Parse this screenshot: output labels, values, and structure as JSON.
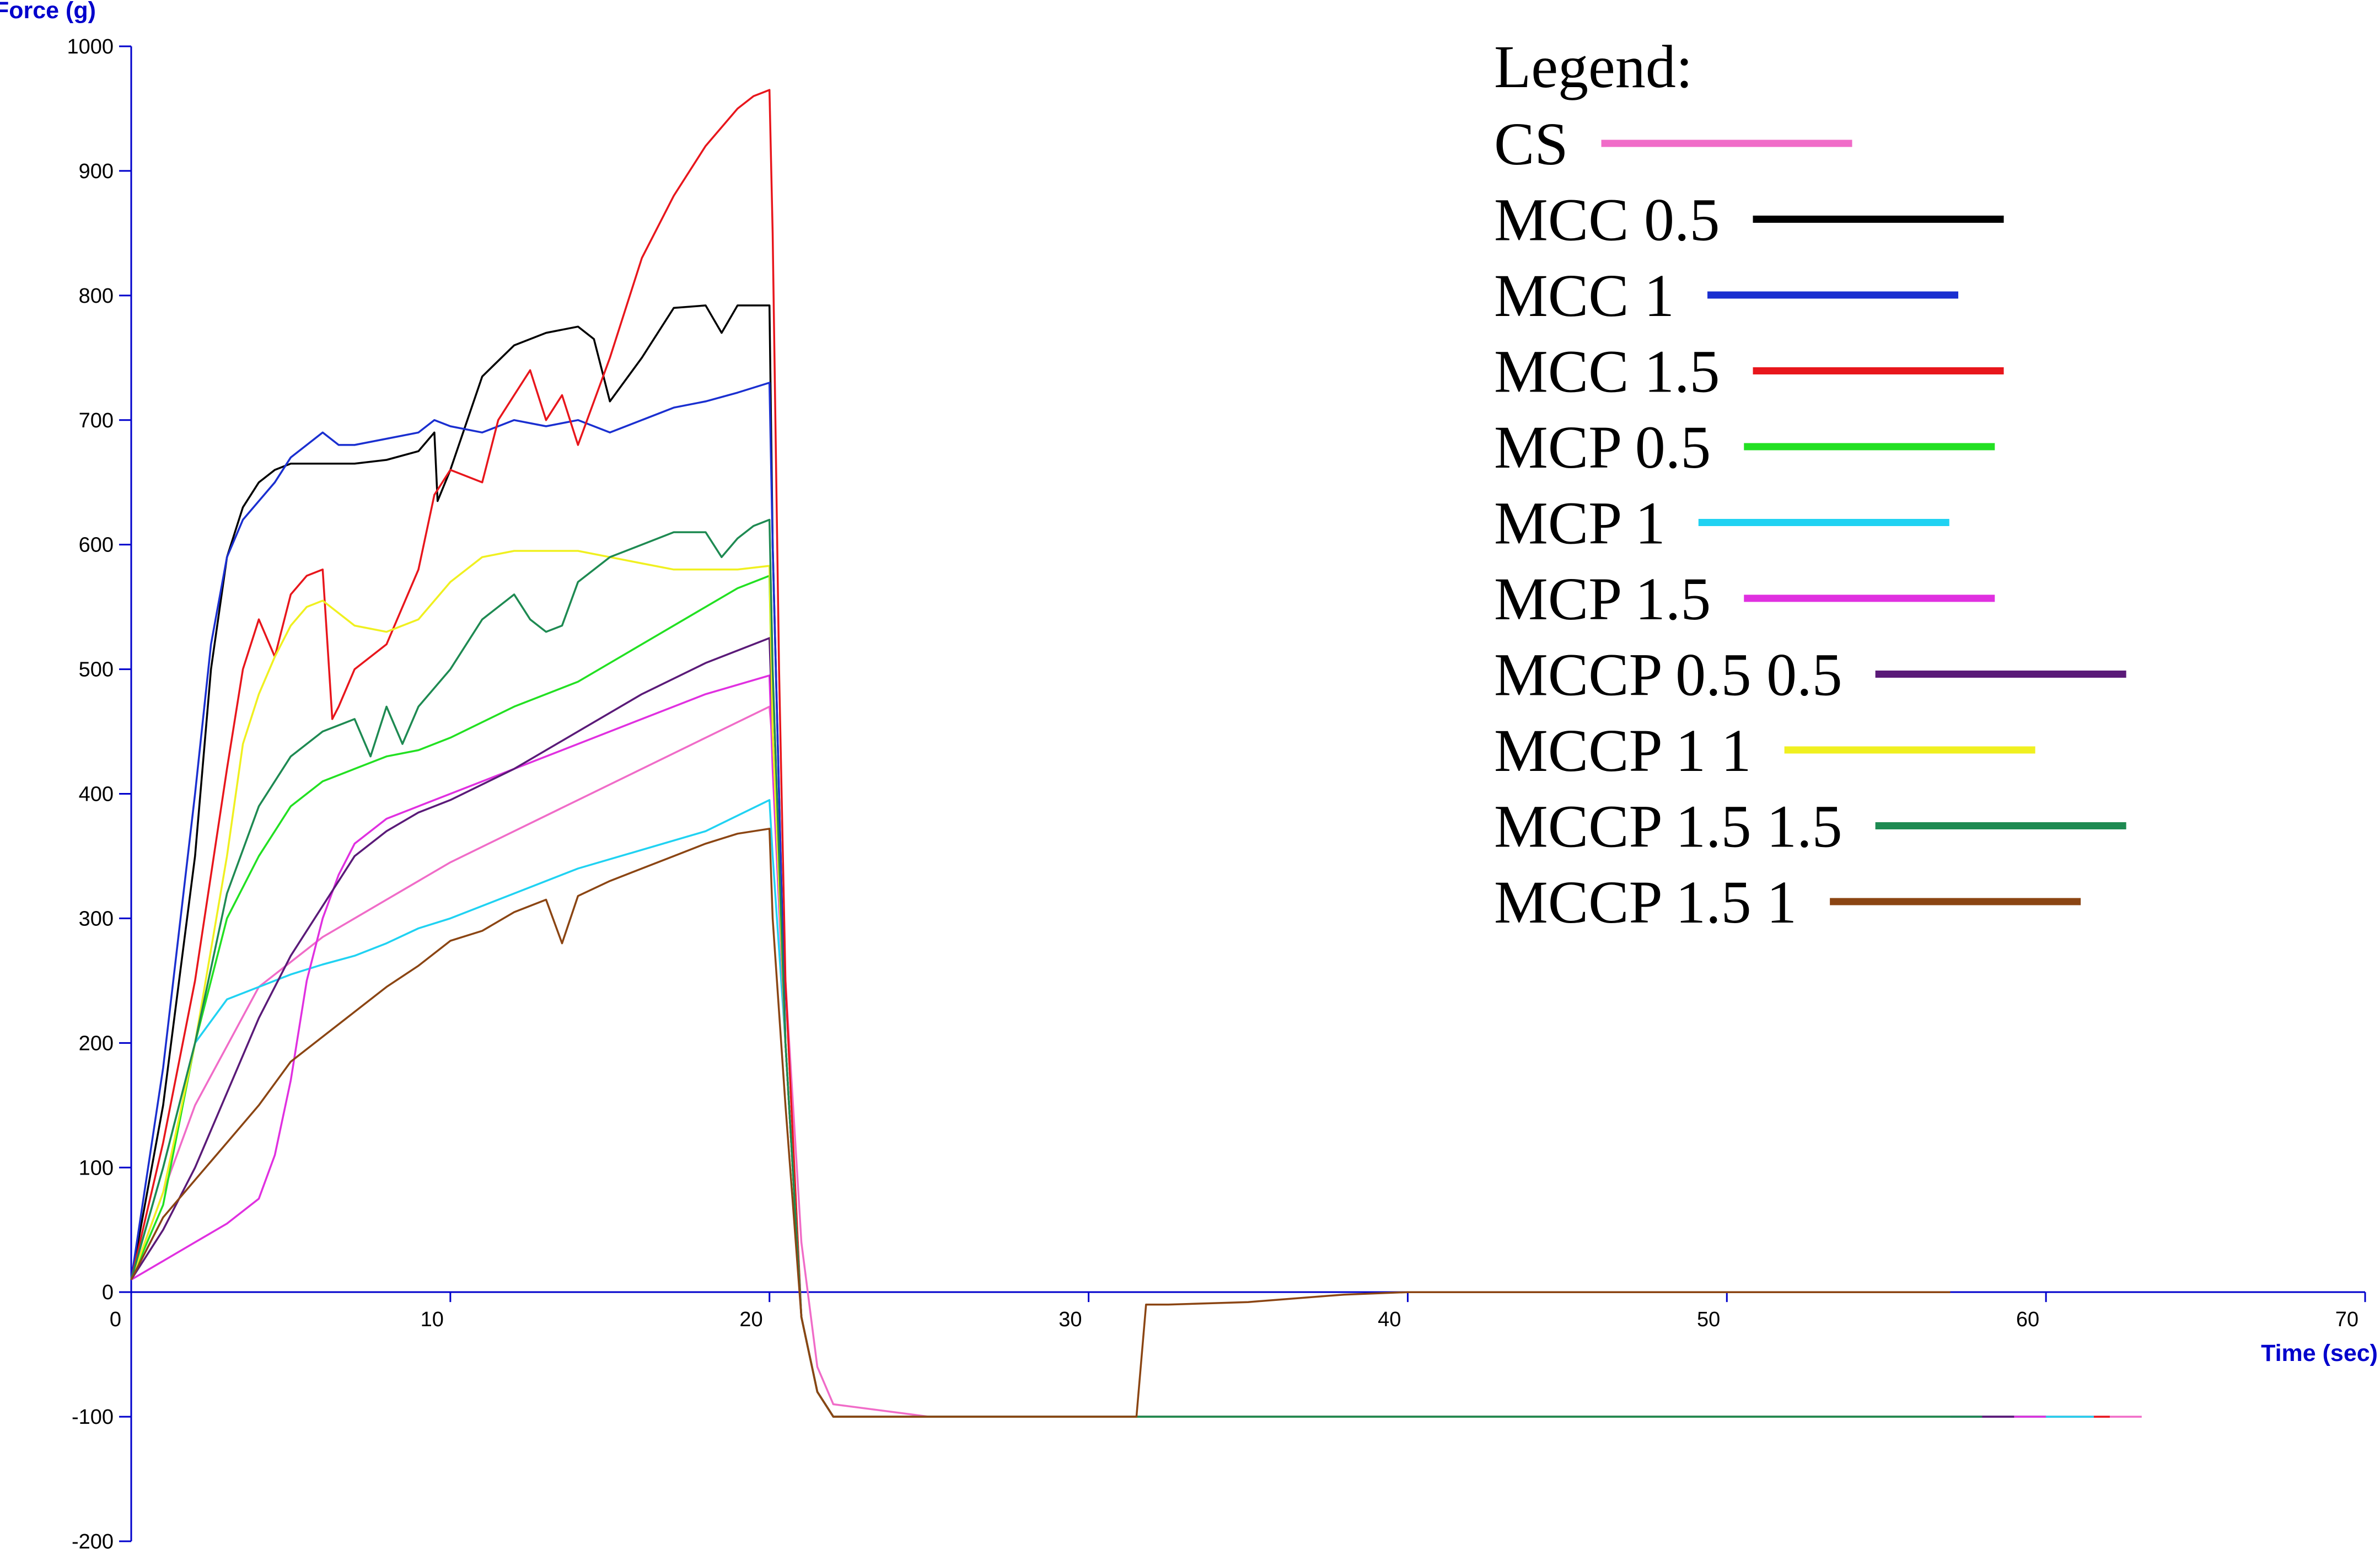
{
  "chart_data": {
    "type": "line",
    "ylabel": "Force (g)",
    "xlabel": "Time (sec)",
    "xlim": [
      0,
      70
    ],
    "ylim": [
      -200,
      1000
    ],
    "x_ticks": [
      0,
      10,
      20,
      30,
      40,
      50,
      60,
      70
    ],
    "y_ticks": [
      1000,
      900,
      800,
      700,
      600,
      500,
      400,
      300,
      200,
      100,
      0,
      -100,
      -200
    ],
    "grid": false,
    "legend_title": "Legend:",
    "legend_position": "top-right",
    "axis_color": "#0000cc",
    "series": [
      {
        "name": "CS",
        "color": "#f06cc8",
        "x": [
          0,
          2,
          4,
          6,
          8,
          10,
          12,
          14,
          16,
          18,
          20,
          20.1,
          20.5,
          21,
          21.5,
          22,
          25,
          40,
          60,
          63
        ],
        "y": [
          10,
          150,
          245,
          285,
          315,
          345,
          370,
          395,
          420,
          445,
          470,
          440,
          250,
          40,
          -60,
          -90,
          -100,
          -100,
          -100,
          -100
        ]
      },
      {
        "name": "MCC 0.5",
        "color": "#000000",
        "x": [
          0,
          1,
          2,
          2.5,
          3,
          3.5,
          4,
          4.5,
          5,
          5.5,
          6,
          7,
          8,
          9,
          9.5,
          9.6,
          10,
          11,
          12,
          13,
          14,
          14.5,
          15,
          16,
          17,
          18,
          18.5,
          19,
          20,
          20.1,
          20.5,
          21,
          21.5,
          22,
          30,
          50,
          59
        ],
        "y": [
          10,
          150,
          350,
          500,
          590,
          630,
          650,
          660,
          665,
          665,
          665,
          665,
          668,
          675,
          690,
          635,
          660,
          735,
          760,
          770,
          775,
          765,
          715,
          750,
          790,
          792,
          770,
          792,
          792,
          600,
          200,
          -20,
          -80,
          -100,
          -100,
          -100,
          -100
        ]
      },
      {
        "name": "MCC 1",
        "color": "#1a2fd0",
        "x": [
          0,
          1,
          2,
          2.5,
          3,
          3.5,
          4,
          4.5,
          5,
          5.5,
          6,
          6.5,
          7,
          8,
          9,
          9.5,
          10,
          11,
          12,
          13,
          14,
          15,
          16,
          17,
          18,
          19,
          20,
          20.1,
          20.5,
          21,
          21.5,
          22,
          30,
          50,
          60
        ],
        "y": [
          10,
          180,
          400,
          520,
          590,
          620,
          635,
          650,
          670,
          680,
          690,
          680,
          680,
          685,
          690,
          700,
          695,
          690,
          700,
          695,
          700,
          690,
          700,
          710,
          715,
          722,
          730,
          600,
          200,
          -20,
          -80,
          -100,
          -100,
          -100,
          -100
        ]
      },
      {
        "name": "MCC 1.5",
        "color": "#e8161c",
        "x": [
          0,
          1,
          2,
          3,
          3.5,
          4,
          4.5,
          5,
          5.5,
          6,
          6.3,
          6.5,
          7,
          8,
          9,
          9.5,
          10,
          11,
          11.5,
          12,
          12.5,
          13,
          13.5,
          14,
          15,
          16,
          17,
          18,
          19,
          19.5,
          20,
          20.1,
          20.3,
          20.5,
          21,
          21.5,
          22,
          30,
          50,
          62
        ],
        "y": [
          10,
          120,
          250,
          420,
          500,
          540,
          510,
          560,
          575,
          580,
          460,
          470,
          500,
          520,
          580,
          640,
          660,
          650,
          700,
          720,
          740,
          700,
          720,
          680,
          750,
          830,
          880,
          920,
          950,
          960,
          965,
          850,
          500,
          250,
          -20,
          -80,
          -100,
          -100,
          -100,
          -100
        ]
      },
      {
        "name": "MCP 0.5",
        "color": "#22e022",
        "x": [
          0,
          1,
          2,
          3,
          4,
          5,
          6,
          7,
          8,
          9,
          10,
          12,
          14,
          16,
          18,
          19,
          20,
          20.1,
          20.5,
          21,
          21.5,
          22,
          30,
          50,
          60
        ],
        "y": [
          10,
          70,
          200,
          300,
          350,
          390,
          410,
          420,
          430,
          435,
          445,
          470,
          490,
          520,
          550,
          565,
          575,
          450,
          200,
          -20,
          -80,
          -100,
          -100,
          -100,
          -100
        ]
      },
      {
        "name": "MCP 1",
        "color": "#20d2f2",
        "x": [
          0,
          1,
          2,
          3,
          4,
          5,
          6,
          7,
          8,
          9,
          10,
          12,
          14,
          16,
          18,
          20,
          20.1,
          20.5,
          21,
          21.5,
          22,
          30,
          50,
          61.5
        ],
        "y": [
          10,
          100,
          200,
          235,
          245,
          255,
          263,
          270,
          280,
          292,
          300,
          320,
          340,
          355,
          370,
          395,
          350,
          200,
          -20,
          -80,
          -100,
          -100,
          -100,
          -100
        ]
      },
      {
        "name": "MCP 1.5",
        "color": "#e030e0",
        "x": [
          0,
          1,
          2,
          3,
          4,
          4.5,
          5,
          5.5,
          6,
          6.5,
          7,
          8,
          9,
          10,
          12,
          14,
          16,
          18,
          20,
          20.1,
          20.5,
          21,
          21.5,
          22,
          30,
          50,
          60
        ],
        "y": [
          10,
          25,
          40,
          55,
          75,
          110,
          170,
          250,
          300,
          335,
          360,
          380,
          390,
          400,
          420,
          440,
          460,
          480,
          495,
          420,
          200,
          -20,
          -80,
          -100,
          -100,
          -100,
          -100
        ]
      },
      {
        "name": "MCCP 0.5 0.5",
        "color": "#5a1a78",
        "x": [
          0,
          1,
          2,
          3,
          4,
          5,
          6,
          7,
          8,
          9,
          10,
          12,
          14,
          16,
          18,
          20,
          20.1,
          20.5,
          21,
          21.5,
          22,
          30,
          50,
          59
        ],
        "y": [
          10,
          50,
          100,
          160,
          220,
          270,
          310,
          350,
          370,
          385,
          395,
          420,
          450,
          480,
          505,
          525,
          450,
          200,
          -20,
          -80,
          -100,
          -100,
          -100,
          -100
        ]
      },
      {
        "name": "MCCP 1 1",
        "color": "#f0f020",
        "x": [
          0,
          1,
          2,
          3,
          3.5,
          4,
          4.5,
          5,
          5.5,
          6,
          7,
          8,
          9,
          10,
          11,
          12,
          13,
          14,
          15,
          16,
          17,
          18,
          19,
          20,
          20.1,
          20.5,
          21,
          21.5,
          22,
          30,
          50,
          57
        ],
        "y": [
          10,
          80,
          200,
          350,
          440,
          480,
          510,
          535,
          550,
          555,
          535,
          530,
          540,
          570,
          590,
          595,
          595,
          595,
          590,
          585,
          580,
          580,
          580,
          583,
          450,
          200,
          -20,
          -80,
          -100,
          -100,
          -100,
          -100
        ]
      },
      {
        "name": "MCCP 1.5 1.5",
        "color": "#1e8a52",
        "x": [
          0,
          1,
          2,
          3,
          4,
          5,
          6,
          7,
          7.5,
          8,
          8.5,
          9,
          10,
          11,
          12,
          12.5,
          13,
          13.5,
          14,
          15,
          16,
          17,
          18,
          18.5,
          19,
          19.5,
          20,
          20.1,
          20.5,
          21,
          21.5,
          22,
          30,
          50,
          58
        ],
        "y": [
          10,
          100,
          200,
          320,
          390,
          430,
          450,
          460,
          430,
          470,
          440,
          470,
          500,
          540,
          560,
          540,
          530,
          535,
          570,
          590,
          600,
          610,
          610,
          590,
          605,
          615,
          620,
          500,
          200,
          -20,
          -80,
          -100,
          -100,
          -100,
          -100
        ]
      },
      {
        "name": "MCCP 1.5 1",
        "color": "#8b4513",
        "x": [
          0,
          1,
          2,
          3,
          4,
          5,
          6,
          7,
          8,
          9,
          10,
          11,
          12,
          13,
          13.5,
          14,
          15,
          16,
          17,
          18,
          19,
          20,
          20.1,
          20.5,
          21,
          21.5,
          22,
          31.5,
          31.8,
          32.5,
          35,
          38,
          40,
          50,
          57
        ],
        "y": [
          10,
          60,
          90,
          120,
          150,
          185,
          205,
          225,
          245,
          262,
          282,
          290,
          305,
          315,
          280,
          318,
          330,
          340,
          350,
          360,
          368,
          372,
          300,
          150,
          -20,
          -80,
          -100,
          -100,
          -10,
          -10,
          -8,
          -2,
          0,
          0,
          0
        ]
      }
    ]
  }
}
